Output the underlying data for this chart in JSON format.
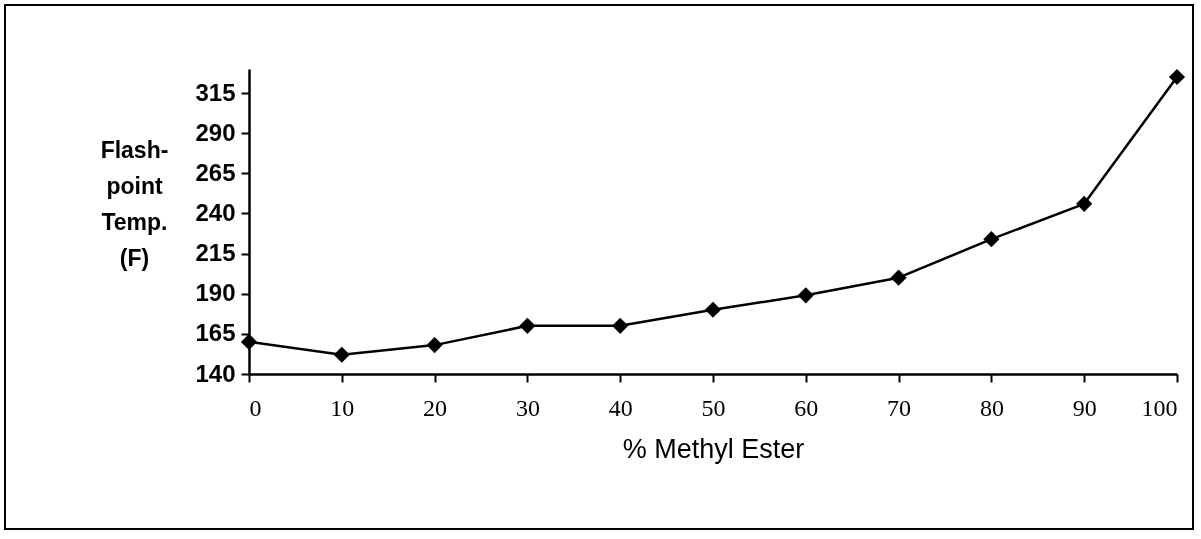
{
  "chart_data": {
    "type": "line",
    "xlabel": "% Methyl Ester",
    "ylabel": "Flash-point Temp. (F)",
    "x": [
      0,
      10,
      20,
      30,
      40,
      50,
      60,
      70,
      80,
      90,
      100
    ],
    "series": [
      {
        "color": "#000000",
        "values": [
          160,
          152,
          158,
          170,
          170,
          180,
          189,
          200,
          224,
          246,
          325
        ]
      }
    ],
    "xlim": [
      0,
      100
    ],
    "xticks": [
      0,
      10,
      20,
      30,
      40,
      50,
      60,
      70,
      80,
      90,
      100
    ],
    "ylim": [
      140,
      330
    ],
    "yticks": [
      140,
      165,
      190,
      215,
      240,
      265,
      290,
      315
    ],
    "marker": "diamond",
    "line_style": "solid",
    "grid": false,
    "legend": false
  }
}
